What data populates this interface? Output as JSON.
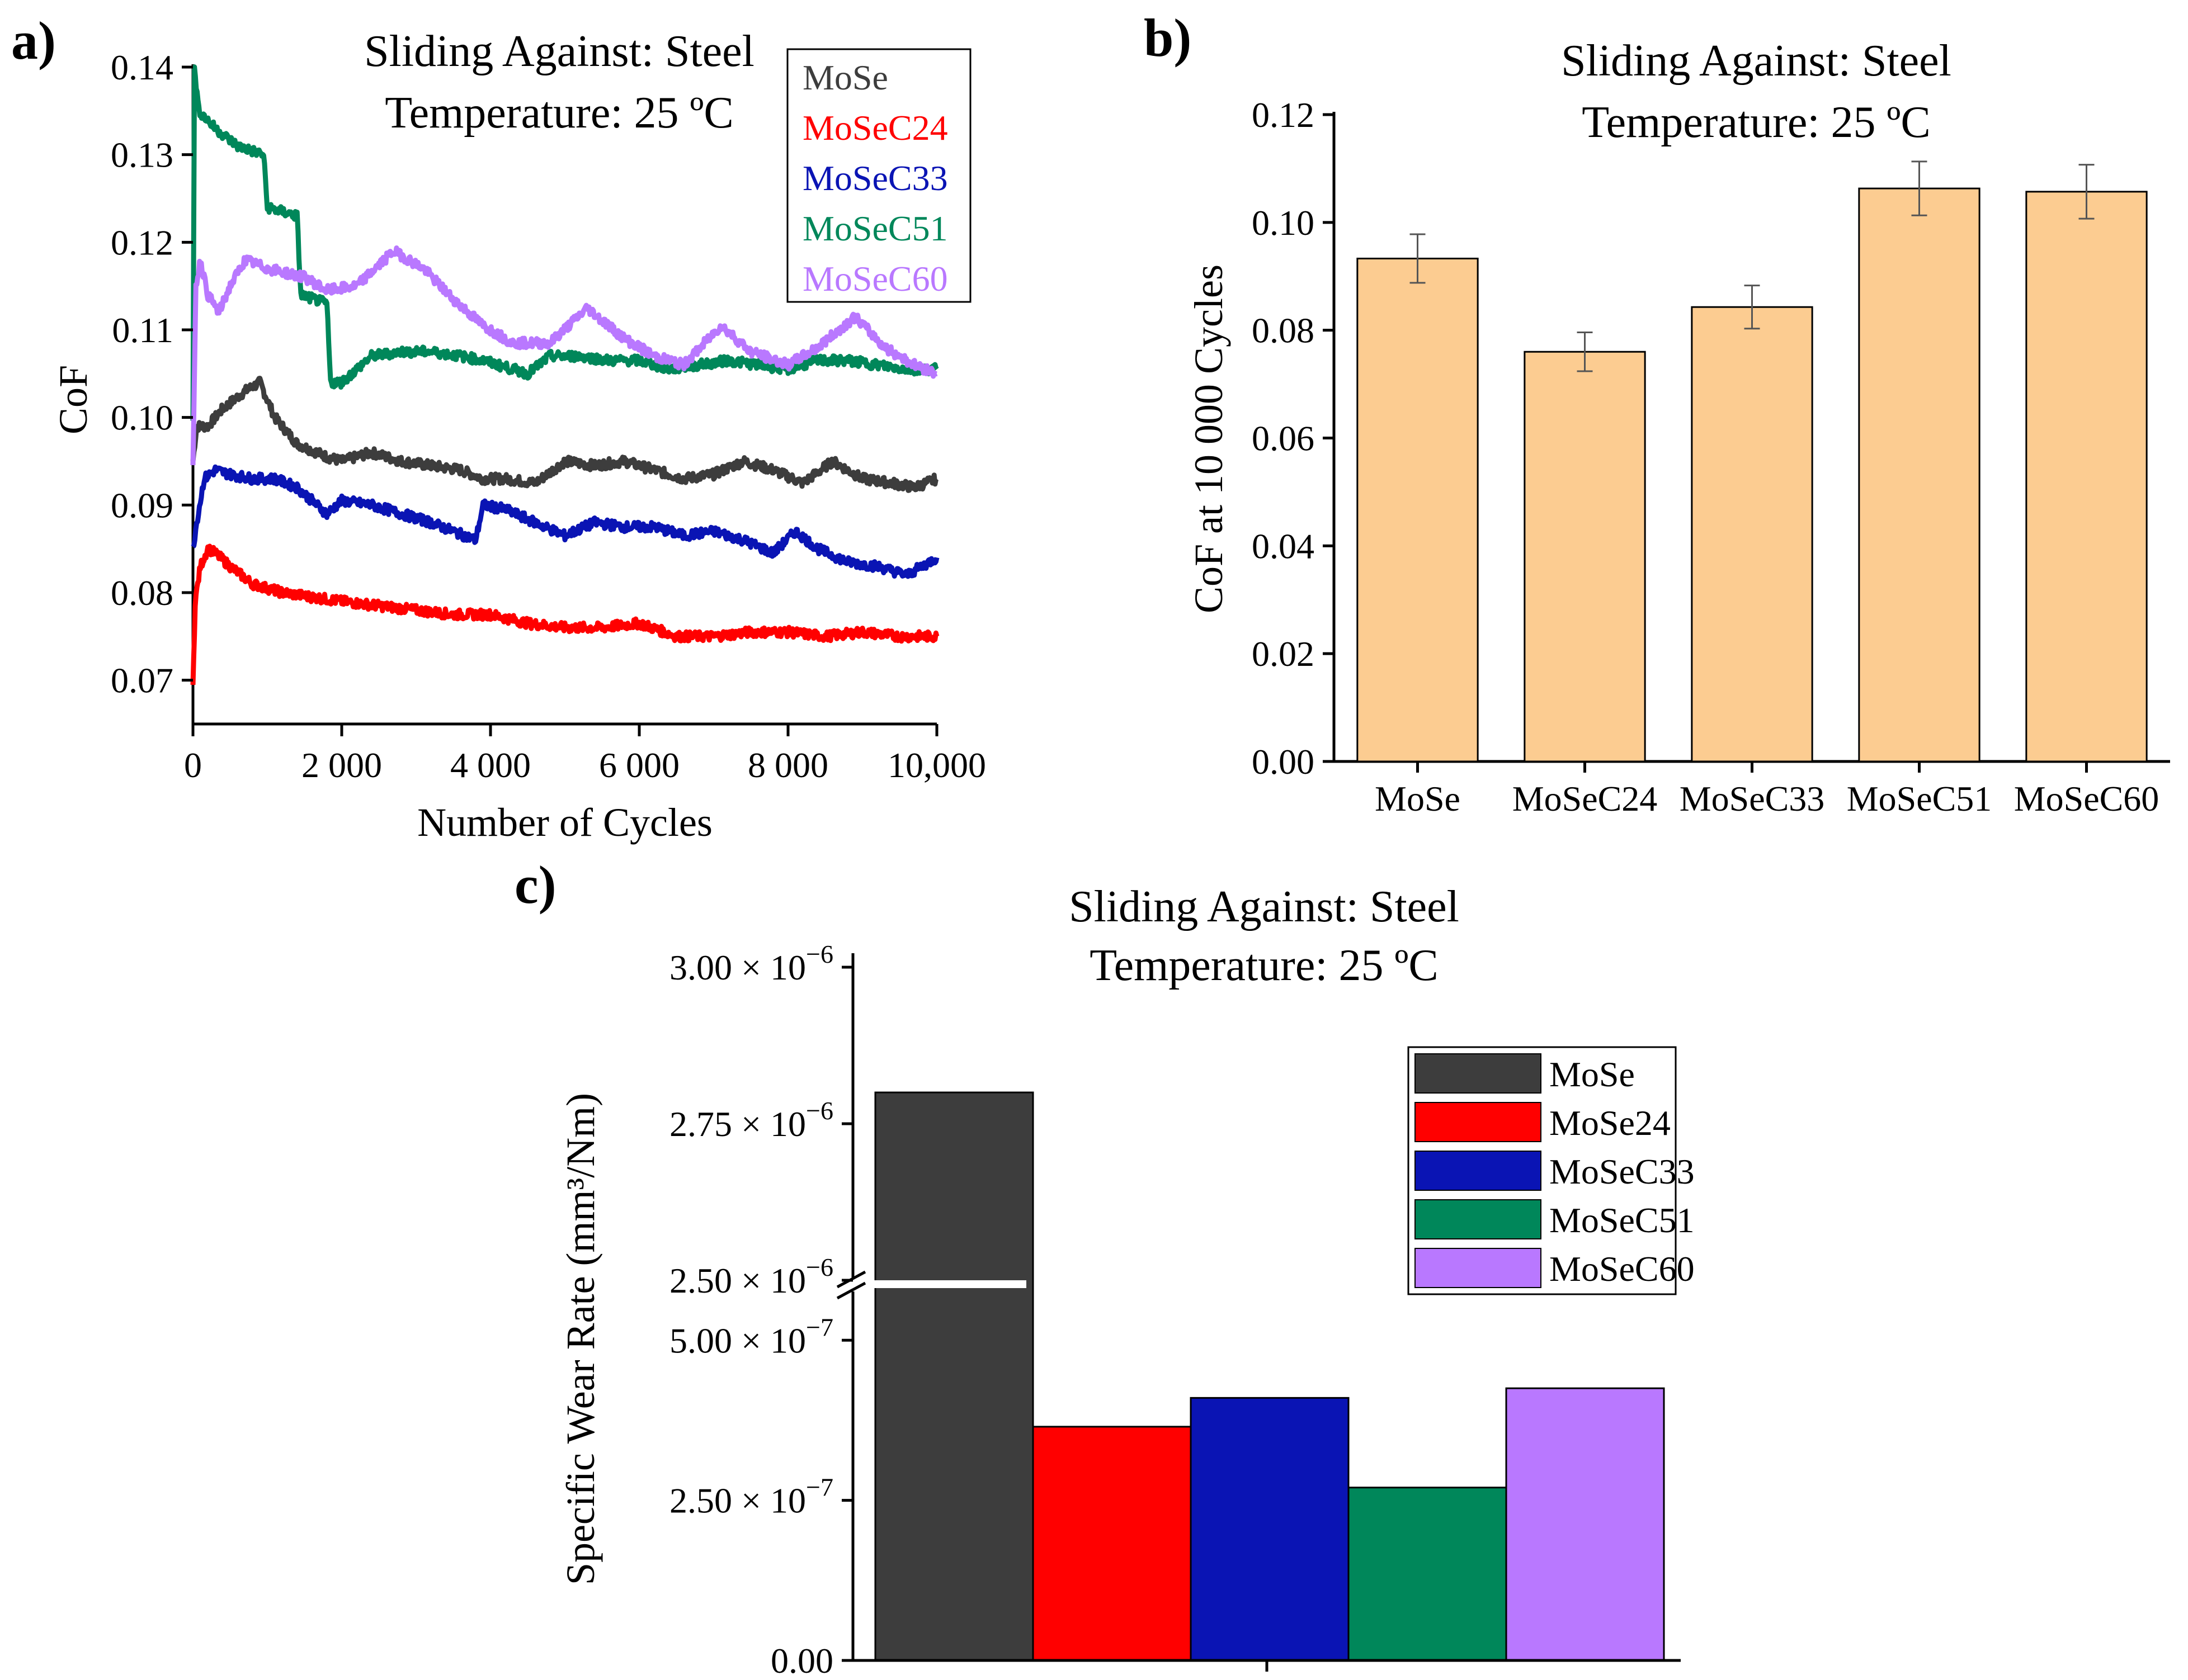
{
  "chart_data": [
    {
      "panel": "a)",
      "type": "line",
      "title": [
        "Sliding Against: Steel",
        "Temperature: 25 ºC"
      ],
      "xlabel": "Number of Cycles",
      "ylabel": "CoF",
      "xlim": [
        0,
        10000
      ],
      "ylim": [
        0.065,
        0.14
      ],
      "xticks": [
        0,
        2000,
        4000,
        6000,
        8000,
        10000
      ],
      "xtick_labels": [
        "0",
        "2 000",
        "4 000",
        "6 000",
        "8 000",
        "10,000"
      ],
      "yticks": [
        0.07,
        0.08,
        0.09,
        0.1,
        0.11,
        0.12,
        0.13,
        0.14
      ],
      "ytick_labels": [
        "0.07",
        "0.08",
        "0.09",
        "0.10",
        "0.11",
        "0.12",
        "0.13",
        "0.14"
      ],
      "legend_position": "top-right",
      "series": [
        {
          "name": "MoSe",
          "color": "#3d3d3d",
          "x": [
            0,
            50,
            200,
            400,
            700,
            900,
            1100,
            1400,
            1800,
            2000,
            2400,
            2800,
            3200,
            3600,
            3900,
            4200,
            4600,
            5000,
            5400,
            5800,
            6200,
            6600,
            7000,
            7400,
            7800,
            8200,
            8600,
            9000,
            9400,
            9700,
            10000
          ],
          "y": [
            0.095,
            0.099,
            0.099,
            0.101,
            0.103,
            0.104,
            0.1,
            0.097,
            0.0955,
            0.095,
            0.096,
            0.095,
            0.0945,
            0.094,
            0.093,
            0.093,
            0.0925,
            0.095,
            0.0945,
            0.095,
            0.094,
            0.093,
            0.0935,
            0.095,
            0.094,
            0.0925,
            0.095,
            0.093,
            0.0925,
            0.092,
            0.093
          ]
        },
        {
          "name": "MoSeC24",
          "color": "#ff0000",
          "x": [
            0,
            30,
            100,
            200,
            300,
            500,
            800,
            1200,
            1600,
            2000,
            2500,
            3000,
            3500,
            4000,
            4500,
            5000,
            5500,
            6000,
            6500,
            7000,
            7500,
            8000,
            8500,
            9000,
            9500,
            10000
          ],
          "y": [
            0.069,
            0.079,
            0.083,
            0.085,
            0.0845,
            0.083,
            0.081,
            0.08,
            0.0795,
            0.079,
            0.0785,
            0.078,
            0.0775,
            0.0775,
            0.0765,
            0.076,
            0.076,
            0.0765,
            0.075,
            0.075,
            0.0755,
            0.0755,
            0.075,
            0.0755,
            0.075,
            0.075
          ]
        },
        {
          "name": "MoSeC33",
          "color": "#0a14b4",
          "x": [
            0,
            50,
            150,
            300,
            500,
            800,
            1100,
            1400,
            1800,
            2000,
            2400,
            2800,
            3200,
            3500,
            3800,
            3900,
            4200,
            4600,
            5000,
            5400,
            5800,
            6200,
            6600,
            7000,
            7400,
            7800,
            8100,
            8400,
            8800,
            9200,
            9600,
            10000
          ],
          "y": [
            0.085,
            0.088,
            0.093,
            0.094,
            0.0935,
            0.093,
            0.093,
            0.092,
            0.089,
            0.0905,
            0.09,
            0.089,
            0.088,
            0.087,
            0.086,
            0.09,
            0.0895,
            0.088,
            0.0865,
            0.088,
            0.0875,
            0.0875,
            0.0865,
            0.087,
            0.086,
            0.0845,
            0.087,
            0.085,
            0.0835,
            0.083,
            0.082,
            0.084
          ]
        },
        {
          "name": "MoSeC51",
          "color": "#00875a",
          "x": [
            0,
            20,
            80,
            300,
            600,
            950,
            1000,
            1400,
            1450,
            1800,
            1850,
            2000,
            2400,
            2800,
            3200,
            3600,
            3900,
            4300,
            4500,
            4800,
            5200,
            5600,
            6000,
            6400,
            6800,
            7200,
            7600,
            8000,
            8400,
            8800,
            9200,
            9600,
            10000
          ],
          "y": [
            0.1,
            0.14,
            0.135,
            0.133,
            0.131,
            0.13,
            0.124,
            0.123,
            0.114,
            0.113,
            0.104,
            0.104,
            0.107,
            0.1075,
            0.1075,
            0.107,
            0.1065,
            0.1055,
            0.105,
            0.107,
            0.107,
            0.1065,
            0.1065,
            0.1055,
            0.106,
            0.1065,
            0.106,
            0.1055,
            0.1065,
            0.1065,
            0.106,
            0.1055,
            0.1055
          ]
        },
        {
          "name": "MoSeC60",
          "color": "#b978ff",
          "x": [
            0,
            40,
            100,
            200,
            350,
            500,
            700,
            1000,
            1500,
            1800,
            2200,
            2700,
            3100,
            3500,
            3900,
            4300,
            4800,
            5300,
            5800,
            6200,
            6600,
            7100,
            7500,
            8000,
            8400,
            8900,
            9300,
            9700,
            10000
          ],
          "y": [
            0.095,
            0.115,
            0.118,
            0.114,
            0.112,
            0.115,
            0.118,
            0.117,
            0.116,
            0.1145,
            0.115,
            0.119,
            0.117,
            0.1135,
            0.1105,
            0.1085,
            0.1085,
            0.1125,
            0.109,
            0.107,
            0.106,
            0.1105,
            0.1075,
            0.106,
            0.108,
            0.1115,
            0.108,
            0.106,
            0.105
          ]
        }
      ]
    },
    {
      "panel": "b)",
      "type": "bar",
      "title": [
        "Sliding Against: Steel",
        "Temperature: 25 ºC"
      ],
      "xlabel": "",
      "ylabel": "CoF at 10 000 Cycles",
      "ylim": [
        0,
        0.12
      ],
      "yticks": [
        0,
        0.02,
        0.04,
        0.06,
        0.08,
        0.1,
        0.12
      ],
      "ytick_labels": [
        "0.00",
        "0.02",
        "0.04",
        "0.06",
        "0.08",
        "0.10",
        "0.12"
      ],
      "categories": [
        "MoSe",
        "MoSeC24",
        "MoSeC33",
        "MoSeC51",
        "MoSeC60"
      ],
      "values": [
        0.0933,
        0.076,
        0.0843,
        0.1063,
        0.1057
      ],
      "errors": [
        0.0045,
        0.0036,
        0.004,
        0.005,
        0.005
      ],
      "bar_color": "#fccc91"
    },
    {
      "panel": "c)",
      "type": "bar",
      "title": [
        "Sliding Against: Steel",
        "Temperature: 25 ºC"
      ],
      "xlabel": "",
      "ylabel": "Specific Wear Rate (mm³/Nm)",
      "y_break": {
        "lower_range": [
          0,
          5.5e-07
        ],
        "upper_range": [
          2.5e-06,
          3e-06
        ]
      },
      "ytick_values_lower": [
        0,
        2.5e-07,
        5e-07
      ],
      "ytick_values_upper": [
        2.5e-06,
        2.75e-06,
        3e-06
      ],
      "ytick_labels": [
        {
          "mant": "0.00",
          "exp": ""
        },
        {
          "mant": "2.50 × 10",
          "exp": "−7"
        },
        {
          "mant": "5.00 × 10",
          "exp": "−7"
        },
        {
          "mant": "2.50 × 10",
          "exp": "−6"
        },
        {
          "mant": "2.75 × 10",
          "exp": "−6"
        },
        {
          "mant": "3.00 × 10",
          "exp": "−6"
        }
      ],
      "categories": [
        "MoSe",
        "MoSe24",
        "MoSeC33",
        "MoSeC51",
        "MoSeC60"
      ],
      "values": [
        2.8e-06,
        3.65e-07,
        4.1e-07,
        2.7e-07,
        4.25e-07
      ],
      "colors": [
        "#3d3d3d",
        "#ff0000",
        "#0a14b4",
        "#00875a",
        "#b978ff"
      ],
      "legend_position": "top-right"
    }
  ]
}
